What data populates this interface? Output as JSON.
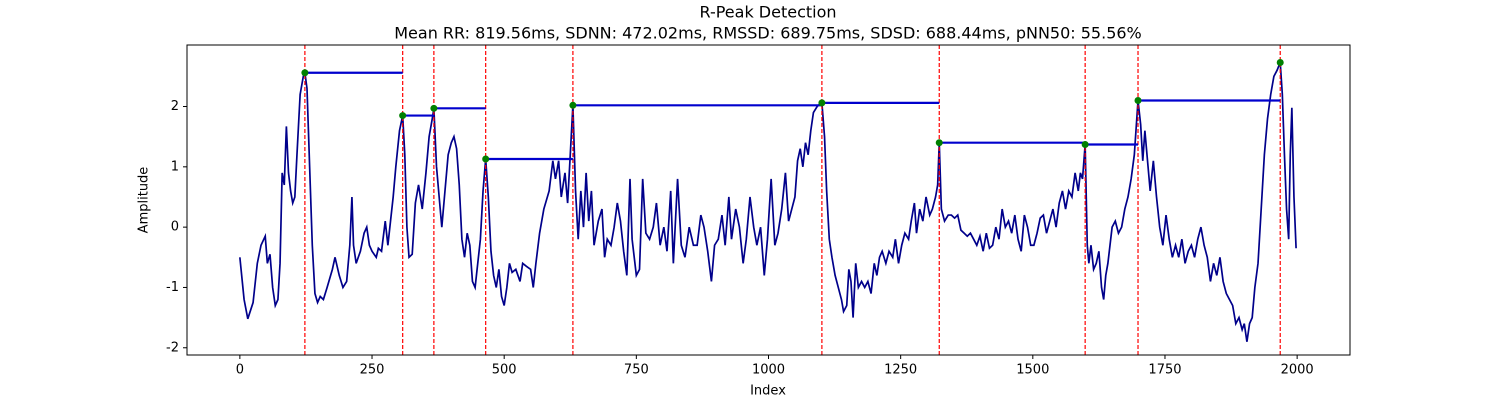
{
  "chart_data": {
    "type": "line",
    "title": "R-Peak Detection",
    "subtitle": "Mean RR: 819.56ms, SDNN: 472.02ms, RMSSD: 689.75ms, SDSD: 688.44ms, pNN50: 55.56%",
    "xlabel": "Index",
    "ylabel": "Amplitude",
    "xlim": [
      -100,
      2100
    ],
    "ylim": [
      -2.12,
      3.02
    ],
    "xticks": [
      0,
      250,
      500,
      750,
      1000,
      1250,
      1500,
      1750,
      2000
    ],
    "yticks": [
      -2,
      -1,
      0,
      1,
      2
    ],
    "signal": {
      "color": "#00008b",
      "x": [
        0,
        8,
        15,
        25,
        33,
        40,
        48,
        52,
        57,
        62,
        67,
        72,
        76,
        80,
        84,
        88,
        92,
        96,
        100,
        104,
        108,
        114,
        120,
        123,
        127,
        132,
        137,
        142,
        147,
        152,
        158,
        165,
        175,
        180,
        188,
        195,
        202,
        208,
        212,
        215,
        220,
        228,
        235,
        240,
        245,
        250,
        258,
        262,
        268,
        275,
        280,
        285,
        290,
        295,
        302,
        308,
        312,
        316,
        320,
        326,
        332,
        338,
        345,
        352,
        358,
        364,
        367,
        372,
        378,
        382,
        388,
        394,
        400,
        405,
        410,
        415,
        420,
        425,
        430,
        435,
        440,
        445,
        450,
        455,
        460,
        465,
        470,
        475,
        480,
        485,
        490,
        495,
        500,
        505,
        510,
        515,
        522,
        530,
        535,
        542,
        550,
        555,
        560,
        567,
        575,
        585,
        592,
        597,
        603,
        608,
        615,
        620,
        625,
        630,
        635,
        640,
        645,
        650,
        655,
        660,
        665,
        670,
        678,
        685,
        690,
        695,
        702,
        708,
        714,
        720,
        726,
        732,
        738,
        742,
        750,
        756,
        762,
        768,
        775,
        782,
        788,
        795,
        802,
        808,
        815,
        820,
        828,
        835,
        842,
        850,
        858,
        865,
        872,
        878,
        885,
        892,
        898,
        905,
        912,
        918,
        925,
        930,
        938,
        945,
        952,
        958,
        965,
        972,
        978,
        985,
        992,
        998,
        1005,
        1012,
        1018,
        1025,
        1032,
        1038,
        1044,
        1050,
        1055,
        1060,
        1065,
        1070,
        1075,
        1080,
        1085,
        1092,
        1098,
        1101,
        1106,
        1110,
        1115,
        1120,
        1126,
        1132,
        1138,
        1142,
        1148,
        1152,
        1156,
        1160,
        1165,
        1170,
        1176,
        1182,
        1188,
        1194,
        1200,
        1205,
        1210,
        1215,
        1222,
        1228,
        1235,
        1240,
        1246,
        1252,
        1258,
        1265,
        1270,
        1276,
        1280,
        1286,
        1292,
        1298,
        1305,
        1310,
        1316,
        1320,
        1323,
        1327,
        1333,
        1340,
        1346,
        1352,
        1358,
        1364,
        1370,
        1376,
        1382,
        1388,
        1394,
        1400,
        1406,
        1412,
        1418,
        1424,
        1430,
        1436,
        1442,
        1448,
        1454,
        1460,
        1466,
        1472,
        1478,
        1484,
        1490,
        1496,
        1502,
        1508,
        1514,
        1520,
        1526,
        1532,
        1538,
        1544,
        1550,
        1556,
        1562,
        1568,
        1574,
        1580,
        1586,
        1590,
        1594,
        1599,
        1603,
        1606,
        1610,
        1615,
        1620,
        1625,
        1630,
        1634,
        1638,
        1642,
        1646,
        1650,
        1656,
        1662,
        1668,
        1674,
        1680,
        1686,
        1692,
        1699,
        1704,
        1708,
        1712,
        1716,
        1722,
        1728,
        1734,
        1740,
        1746,
        1752,
        1758,
        1764,
        1770,
        1776,
        1782,
        1788,
        1794,
        1800,
        1806,
        1812,
        1818,
        1824,
        1830,
        1836,
        1842,
        1848,
        1854,
        1860,
        1866,
        1872,
        1878,
        1884,
        1890,
        1896,
        1900,
        1905,
        1910,
        1915,
        1920,
        1926,
        1932,
        1938,
        1944,
        1950,
        1956,
        1962,
        1968,
        1972,
        1976,
        1980,
        1984,
        1987,
        1990,
        1994,
        1998
      ],
      "values": [
        -0.5,
        -1.2,
        -1.52,
        -1.25,
        -0.6,
        -0.3,
        -0.15,
        -0.6,
        -0.45,
        -1.0,
        -1.3,
        -1.2,
        -0.6,
        0.9,
        0.7,
        1.67,
        0.9,
        0.6,
        0.4,
        0.5,
        1.2,
        2.2,
        2.5,
        2.56,
        2.3,
        1.0,
        -0.3,
        -1.1,
        -1.25,
        -1.15,
        -1.2,
        -1.0,
        -0.7,
        -0.5,
        -0.8,
        -1.0,
        -0.9,
        -0.3,
        0.5,
        -0.3,
        -0.6,
        -0.4,
        -0.1,
        0.0,
        -0.3,
        -0.4,
        -0.5,
        -0.35,
        -0.4,
        0.1,
        -0.3,
        0.1,
        0.5,
        1.0,
        1.6,
        1.85,
        1.2,
        0.0,
        -0.5,
        -0.45,
        0.4,
        0.7,
        0.3,
        0.9,
        1.5,
        1.8,
        1.97,
        1.0,
        0.4,
        0.0,
        0.6,
        1.2,
        1.4,
        1.5,
        1.3,
        0.7,
        -0.2,
        -0.5,
        -0.1,
        -0.3,
        -0.9,
        -1.0,
        -0.6,
        -0.2,
        0.6,
        1.13,
        0.5,
        -0.4,
        -0.8,
        -1.0,
        -0.7,
        -1.15,
        -1.3,
        -1.0,
        -0.6,
        -0.75,
        -0.7,
        -0.9,
        -0.6,
        -0.65,
        -0.7,
        -1.0,
        -0.6,
        -0.1,
        0.3,
        0.6,
        1.1,
        0.8,
        1.1,
        0.5,
        0.9,
        0.4,
        1.2,
        2.02,
        0.6,
        -0.2,
        0.6,
        0.0,
        0.9,
        0.1,
        0.6,
        -0.3,
        0.1,
        0.3,
        -0.5,
        -0.2,
        -0.3,
        0.0,
        0.4,
        0.1,
        -0.4,
        -0.8,
        0.8,
        -0.2,
        -0.8,
        -0.7,
        0.8,
        -0.1,
        -0.2,
        0.0,
        0.4,
        -0.3,
        0.0,
        -0.4,
        0.6,
        -0.6,
        0.8,
        -0.3,
        -0.5,
        0.0,
        -0.3,
        -0.3,
        0.2,
        0.0,
        -0.4,
        -0.9,
        -0.3,
        -0.2,
        0.2,
        -0.3,
        0.5,
        -0.2,
        0.3,
        0.0,
        -0.6,
        -0.2,
        0.5,
        0.0,
        -0.3,
        0.0,
        -0.8,
        -0.2,
        0.8,
        -0.3,
        -0.1,
        0.3,
        0.9,
        0.1,
        0.3,
        0.5,
        1.1,
        1.3,
        1.0,
        1.4,
        1.2,
        1.6,
        1.9,
        2.0,
        2.05,
        2.06,
        1.5,
        0.6,
        -0.2,
        -0.5,
        -0.8,
        -1.0,
        -1.2,
        -1.4,
        -1.3,
        -0.7,
        -0.9,
        -1.5,
        -0.6,
        -1.0,
        -0.9,
        -1.0,
        -0.9,
        -1.1,
        -0.6,
        -0.8,
        -0.5,
        -0.4,
        -0.6,
        -0.4,
        -0.5,
        -0.2,
        -0.6,
        -0.3,
        -0.1,
        -0.2,
        0.1,
        0.4,
        -0.1,
        0.3,
        0.1,
        0.5,
        0.2,
        0.3,
        0.5,
        0.7,
        1.4,
        0.3,
        0.1,
        0.2,
        0.2,
        0.15,
        0.2,
        -0.05,
        -0.1,
        -0.15,
        -0.1,
        -0.2,
        -0.3,
        -0.15,
        -0.4,
        -0.1,
        -0.35,
        -0.3,
        0.0,
        -0.2,
        0.3,
        0.0,
        0.1,
        -0.1,
        0.2,
        -0.2,
        -0.4,
        0.2,
        0.0,
        -0.3,
        -0.3,
        -0.1,
        0.15,
        0.2,
        -0.1,
        0.1,
        0.3,
        0.0,
        0.4,
        0.6,
        0.3,
        0.6,
        0.5,
        0.9,
        0.6,
        0.9,
        0.8,
        1.37,
        -0.3,
        -0.6,
        -0.3,
        -0.7,
        -0.6,
        -0.4,
        -1.0,
        -1.2,
        -0.8,
        -0.6,
        -0.3,
        0.0,
        0.1,
        -0.1,
        0.0,
        0.3,
        0.5,
        0.8,
        1.2,
        2.1,
        1.7,
        1.1,
        1.6,
        1.2,
        0.6,
        1.1,
        0.5,
        0.0,
        -0.3,
        0.2,
        -0.2,
        -0.5,
        -0.3,
        -0.5,
        -0.2,
        -0.6,
        -0.4,
        -0.3,
        -0.5,
        -0.2,
        0.0,
        -0.3,
        -0.5,
        -0.9,
        -0.6,
        -0.8,
        -0.5,
        -0.9,
        -1.1,
        -1.2,
        -1.3,
        -1.6,
        -1.5,
        -1.7,
        -1.6,
        -1.9,
        -1.6,
        -1.5,
        -1.0,
        -0.6,
        0.3,
        1.2,
        1.8,
        2.2,
        2.5,
        2.6,
        2.73,
        2.2,
        1.2,
        0.3,
        -0.2,
        1.2,
        1.98,
        0.5,
        -0.35
      ]
    },
    "peaks": {
      "color": "#008000",
      "x": [
        123,
        308,
        367,
        465,
        630,
        1101,
        1323,
        1599,
        1699,
        1968
      ],
      "values": [
        2.56,
        1.85,
        1.97,
        1.13,
        2.02,
        2.06,
        1.4,
        1.37,
        2.1,
        2.73
      ]
    },
    "peak_line_color": "#ff0000",
    "rr_line_color": "#0000cd"
  }
}
